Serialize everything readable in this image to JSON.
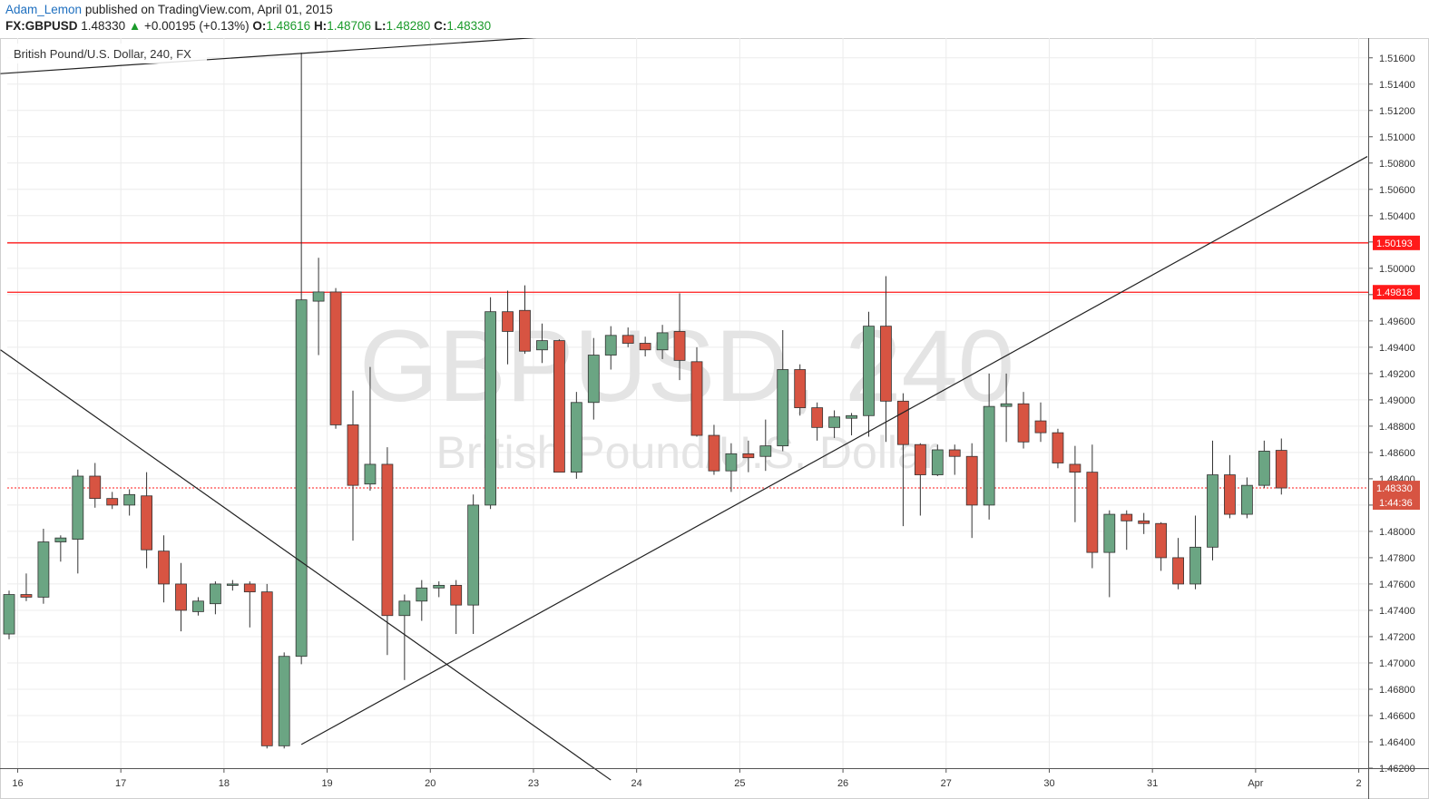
{
  "header": {
    "author": "Adam_Lemon",
    "published_text": "published on TradingView.com, April 01, 2015",
    "symbol": "FX:GBPUSD",
    "last": "1.48330",
    "change_arrow": "▲",
    "change": "+0.00195 (+0.13%)",
    "o_label": "O:",
    "o_value": "1.48616",
    "h_label": "H:",
    "h_value": "1.48706",
    "l_label": "L:",
    "l_value": "1.48280",
    "c_label": "C:",
    "c_value": "1.48330"
  },
  "legend": "British Pound/U.S. Dollar, 240, FX",
  "watermark": {
    "line1": "GBPUSD, 240",
    "line2": "British Pound/U.S. Dollar"
  },
  "colors": {
    "up": "#6ba583",
    "down": "#d75442",
    "level": "#ff1a1a",
    "trendline": "#222222",
    "grid": "#ececec"
  },
  "chart_data": {
    "type": "candlestick",
    "interval": "240",
    "ylim": [
      1.462,
      1.5175
    ],
    "y_ticks": [
      "1.51600",
      "1.51400",
      "1.51200",
      "1.51000",
      "1.50800",
      "1.50600",
      "1.50400",
      "1.50200",
      "1.50000",
      "1.49800",
      "1.49600",
      "1.49400",
      "1.49200",
      "1.49000",
      "1.48800",
      "1.48600",
      "1.48400",
      "1.48200",
      "1.48000",
      "1.47800",
      "1.47600",
      "1.47400",
      "1.47200",
      "1.47000",
      "1.46800",
      "1.46600",
      "1.46400",
      "1.46200"
    ],
    "x_labels": [
      "16",
      "17",
      "18",
      "19",
      "20",
      "23",
      "24",
      "25",
      "26",
      "27",
      "30",
      "31",
      "Apr",
      "2"
    ],
    "grid": true,
    "candles": [
      {
        "o": 1.4722,
        "h": 1.4755,
        "l": 1.4718,
        "c": 1.4752
      },
      {
        "o": 1.4752,
        "h": 1.4768,
        "l": 1.4747,
        "c": 1.475
      },
      {
        "o": 1.475,
        "h": 1.4802,
        "l": 1.4745,
        "c": 1.4792
      },
      {
        "o": 1.4792,
        "h": 1.4797,
        "l": 1.4777,
        "c": 1.4795
      },
      {
        "o": 1.4794,
        "h": 1.4847,
        "l": 1.4768,
        "c": 1.4842
      },
      {
        "o": 1.4842,
        "h": 1.4852,
        "l": 1.4818,
        "c": 1.4825
      },
      {
        "o": 1.4825,
        "h": 1.483,
        "l": 1.4817,
        "c": 1.482
      },
      {
        "o": 1.482,
        "h": 1.4832,
        "l": 1.4812,
        "c": 1.4828
      },
      {
        "o": 1.4827,
        "h": 1.4845,
        "l": 1.4772,
        "c": 1.4786
      },
      {
        "o": 1.4785,
        "h": 1.4797,
        "l": 1.4746,
        "c": 1.476
      },
      {
        "o": 1.476,
        "h": 1.4776,
        "l": 1.4724,
        "c": 1.474
      },
      {
        "o": 1.4739,
        "h": 1.475,
        "l": 1.4736,
        "c": 1.4747
      },
      {
        "o": 1.4745,
        "h": 1.4762,
        "l": 1.4737,
        "c": 1.476
      },
      {
        "o": 1.476,
        "h": 1.4763,
        "l": 1.4755,
        "c": 1.476
      },
      {
        "o": 1.476,
        "h": 1.4762,
        "l": 1.4727,
        "c": 1.4754
      },
      {
        "o": 1.4754,
        "h": 1.476,
        "l": 1.4635,
        "c": 1.4637
      },
      {
        "o": 1.4637,
        "h": 1.4708,
        "l": 1.4635,
        "c": 1.4705
      },
      {
        "o": 1.4705,
        "h": 1.5164,
        "l": 1.4699,
        "c": 1.4976
      },
      {
        "o": 1.4975,
        "h": 1.5008,
        "l": 1.4934,
        "c": 1.4982
      },
      {
        "o": 1.4982,
        "h": 1.4985,
        "l": 1.4878,
        "c": 1.4881
      },
      {
        "o": 1.4881,
        "h": 1.4907,
        "l": 1.4793,
        "c": 1.4835
      },
      {
        "o": 1.4836,
        "h": 1.4925,
        "l": 1.4831,
        "c": 1.4851
      },
      {
        "o": 1.4851,
        "h": 1.4864,
        "l": 1.4706,
        "c": 1.4736
      },
      {
        "o": 1.4736,
        "h": 1.4752,
        "l": 1.4687,
        "c": 1.4747
      },
      {
        "o": 1.4747,
        "h": 1.4763,
        "l": 1.4732,
        "c": 1.4757
      },
      {
        "o": 1.4757,
        "h": 1.4762,
        "l": 1.475,
        "c": 1.4759
      },
      {
        "o": 1.4759,
        "h": 1.4763,
        "l": 1.4722,
        "c": 1.4744
      },
      {
        "o": 1.4744,
        "h": 1.4828,
        "l": 1.4722,
        "c": 1.482
      },
      {
        "o": 1.482,
        "h": 1.4978,
        "l": 1.4817,
        "c": 1.4967
      },
      {
        "o": 1.4967,
        "h": 1.4983,
        "l": 1.4927,
        "c": 1.4952
      },
      {
        "o": 1.4968,
        "h": 1.4987,
        "l": 1.4935,
        "c": 1.4937
      },
      {
        "o": 1.4938,
        "h": 1.4958,
        "l": 1.4928,
        "c": 1.4945
      },
      {
        "o": 1.4945,
        "h": 1.4946,
        "l": 1.4845,
        "c": 1.4845
      },
      {
        "o": 1.4845,
        "h": 1.4906,
        "l": 1.484,
        "c": 1.4898
      },
      {
        "o": 1.4898,
        "h": 1.4947,
        "l": 1.4885,
        "c": 1.4934
      },
      {
        "o": 1.4934,
        "h": 1.4956,
        "l": 1.4923,
        "c": 1.4949
      },
      {
        "o": 1.4949,
        "h": 1.4955,
        "l": 1.494,
        "c": 1.4943
      },
      {
        "o": 1.4943,
        "h": 1.4948,
        "l": 1.4933,
        "c": 1.4938
      },
      {
        "o": 1.4938,
        "h": 1.4957,
        "l": 1.4931,
        "c": 1.4951
      },
      {
        "o": 1.4952,
        "h": 1.4981,
        "l": 1.4915,
        "c": 1.493
      },
      {
        "o": 1.4929,
        "h": 1.494,
        "l": 1.4872,
        "c": 1.4873
      },
      {
        "o": 1.4873,
        "h": 1.4881,
        "l": 1.4843,
        "c": 1.4846
      },
      {
        "o": 1.4846,
        "h": 1.4867,
        "l": 1.483,
        "c": 1.4859
      },
      {
        "o": 1.4859,
        "h": 1.4869,
        "l": 1.4845,
        "c": 1.4856
      },
      {
        "o": 1.4857,
        "h": 1.4885,
        "l": 1.4846,
        "c": 1.4865
      },
      {
        "o": 1.4865,
        "h": 1.4953,
        "l": 1.4861,
        "c": 1.4923
      },
      {
        "o": 1.4923,
        "h": 1.4927,
        "l": 1.4888,
        "c": 1.4894
      },
      {
        "o": 1.4894,
        "h": 1.4898,
        "l": 1.4869,
        "c": 1.4879
      },
      {
        "o": 1.4879,
        "h": 1.4892,
        "l": 1.4871,
        "c": 1.4887
      },
      {
        "o": 1.4886,
        "h": 1.489,
        "l": 1.4873,
        "c": 1.4888
      },
      {
        "o": 1.4888,
        "h": 1.4967,
        "l": 1.4872,
        "c": 1.4956
      },
      {
        "o": 1.4956,
        "h": 1.4994,
        "l": 1.4868,
        "c": 1.4899
      },
      {
        "o": 1.4899,
        "h": 1.4905,
        "l": 1.4804,
        "c": 1.4866
      },
      {
        "o": 1.4866,
        "h": 1.4867,
        "l": 1.4812,
        "c": 1.4843
      },
      {
        "o": 1.4843,
        "h": 1.4866,
        "l": 1.4842,
        "c": 1.4862
      },
      {
        "o": 1.4862,
        "h": 1.4866,
        "l": 1.4843,
        "c": 1.4857
      },
      {
        "o": 1.4857,
        "h": 1.4867,
        "l": 1.4795,
        "c": 1.482
      },
      {
        "o": 1.482,
        "h": 1.492,
        "l": 1.4809,
        "c": 1.4895
      },
      {
        "o": 1.4895,
        "h": 1.492,
        "l": 1.4868,
        "c": 1.4897
      },
      {
        "o": 1.4897,
        "h": 1.4906,
        "l": 1.4863,
        "c": 1.4868
      },
      {
        "o": 1.4884,
        "h": 1.4898,
        "l": 1.4868,
        "c": 1.4875
      },
      {
        "o": 1.4875,
        "h": 1.4878,
        "l": 1.4848,
        "c": 1.4852
      },
      {
        "o": 1.4851,
        "h": 1.4865,
        "l": 1.4807,
        "c": 1.4845
      },
      {
        "o": 1.4845,
        "h": 1.4866,
        "l": 1.4772,
        "c": 1.4784
      },
      {
        "o": 1.4784,
        "h": 1.4816,
        "l": 1.475,
        "c": 1.4813
      },
      {
        "o": 1.4813,
        "h": 1.4816,
        "l": 1.4786,
        "c": 1.4808
      },
      {
        "o": 1.4808,
        "h": 1.4814,
        "l": 1.4798,
        "c": 1.4806
      },
      {
        "o": 1.4806,
        "h": 1.4807,
        "l": 1.477,
        "c": 1.478
      },
      {
        "o": 1.478,
        "h": 1.4795,
        "l": 1.4756,
        "c": 1.476
      },
      {
        "o": 1.476,
        "h": 1.4812,
        "l": 1.4756,
        "c": 1.4788
      },
      {
        "o": 1.4788,
        "h": 1.4869,
        "l": 1.4778,
        "c": 1.4843
      },
      {
        "o": 1.4843,
        "h": 1.4858,
        "l": 1.481,
        "c": 1.4813
      },
      {
        "o": 1.4813,
        "h": 1.4841,
        "l": 1.481,
        "c": 1.4835
      },
      {
        "o": 1.4835,
        "h": 1.4869,
        "l": 1.4833,
        "c": 1.4861
      },
      {
        "o": 1.48616,
        "h": 1.48706,
        "l": 1.4828,
        "c": 1.4833
      }
    ],
    "horizontal_levels": [
      {
        "value": 1.50193,
        "label": "1.50193"
      },
      {
        "value": 1.49818,
        "label": "1.49818"
      }
    ],
    "last_price": {
      "value": 1.4833,
      "label": "1.48330",
      "countdown": "1:44:36"
    },
    "trendlines": [
      {
        "from": {
          "bar": -0.5,
          "price": 1.5148
        },
        "to": {
          "bar": 32.5,
          "price": 1.5177
        }
      },
      {
        "from": {
          "bar": -0.5,
          "price": 1.4938
        },
        "to": {
          "bar": 35,
          "price": 1.4611
        }
      },
      {
        "from": {
          "bar": 17,
          "price": 1.4638
        },
        "to": {
          "bar": 79,
          "price": 1.5085
        }
      }
    ]
  }
}
